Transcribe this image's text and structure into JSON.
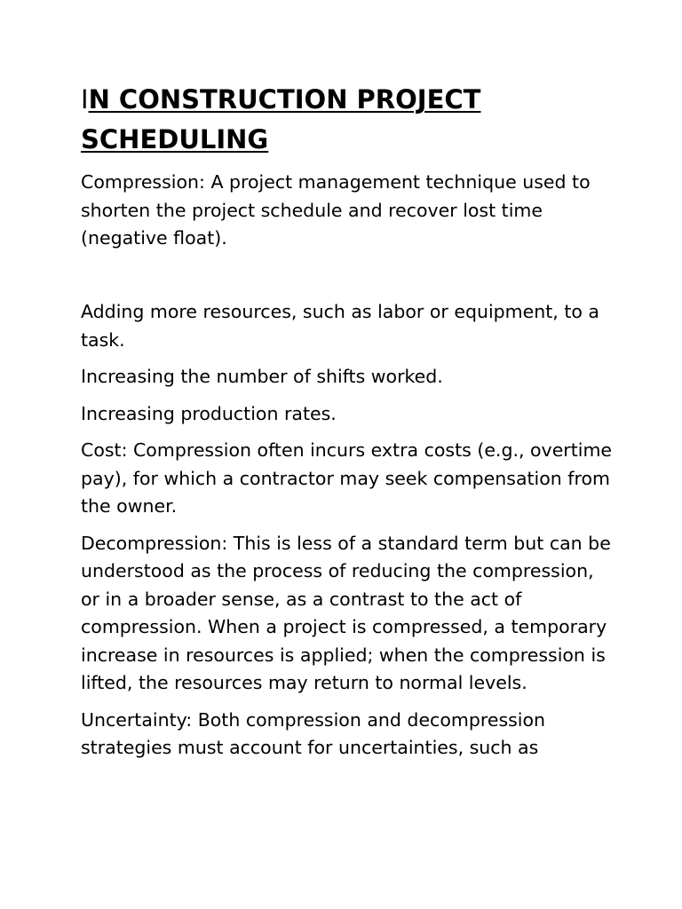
{
  "document": {
    "title_first_letter": "I",
    "title_rest": "N CONSTRUCTION PROJECT SCHEDULING",
    "paragraphs": [
      "Compression: A project management technique used to shorten the project schedule and recover lost time (negative float).",
      "",
      "Adding more resources, such as labor or equipment, to a task.",
      "Increasing the number of shifts worked.",
      "Increasing production rates.",
      "Cost: Compression often incurs extra costs (e.g., overtime pay), for which a contractor may seek compensation from the owner.",
      "Decompression: This is less of a standard term but can be understood as the process of reducing the compression, or in a broader sense, as a contrast to the act of compression. When a project is compressed, a temporary increase in resources is applied; when the compression is lifted, the resources may return to normal levels.",
      "Uncertainty: Both compression and decompression strategies must account for uncertainties, such as"
    ]
  }
}
